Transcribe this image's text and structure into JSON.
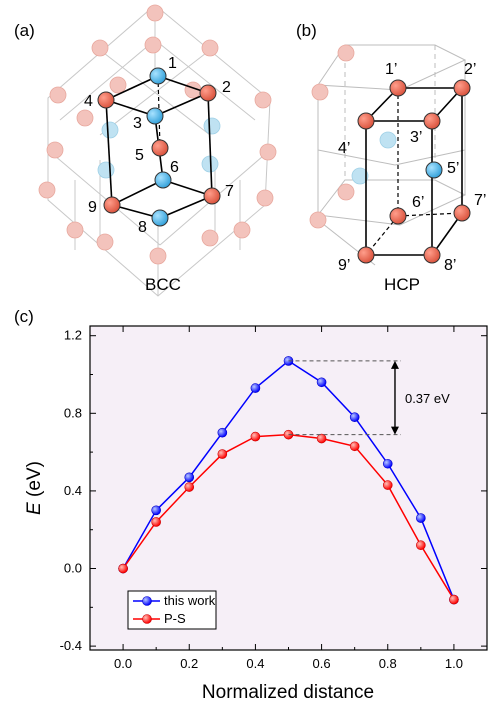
{
  "panels": {
    "a": {
      "tag": "(a)",
      "caption": "BCC",
      "atom_labels": [
        "1",
        "2",
        "3",
        "4",
        "5",
        "6",
        "7",
        "8",
        "9"
      ]
    },
    "b": {
      "tag": "(b)",
      "caption": "HCP",
      "atom_labels": [
        "1’",
        "2’",
        "3’",
        "4’",
        "5’",
        "6’",
        "7’",
        "8’",
        "9’"
      ]
    },
    "c": {
      "tag": "(c)"
    }
  },
  "colors": {
    "atom_red": "#e8644f",
    "atom_blue": "#5ab8e6",
    "atom_faint_red": "#f3c3bc",
    "atom_faint_blue": "#bfe2f2",
    "plot_bg": "#f6eff7",
    "series_blue": "#0000ff",
    "series_red": "#ff0000"
  },
  "chart_data": {
    "type": "line",
    "xlabel": "Normalized distance",
    "ylabel_italic": "E",
    "ylabel_unit": " (eV)",
    "xlim": [
      -0.1,
      1.1
    ],
    "ylim": [
      -0.42,
      1.25
    ],
    "xticks": [
      0.0,
      0.2,
      0.4,
      0.6,
      0.8,
      1.0
    ],
    "xtick_labels": [
      "0.0",
      "0.2",
      "0.4",
      "0.6",
      "0.8",
      "1.0"
    ],
    "yticks": [
      -0.4,
      0.0,
      0.4,
      0.8,
      1.2
    ],
    "ytick_labels": [
      "-0.4",
      "0.0",
      "0.4",
      "0.8",
      "1.2"
    ],
    "legend_position": "bottom-left",
    "series": [
      {
        "name": "this work",
        "color": "#0000ff",
        "x": [
          0.0,
          0.1,
          0.2,
          0.3,
          0.4,
          0.5,
          0.6,
          0.7,
          0.8,
          0.9,
          1.0
        ],
        "y": [
          0.0,
          0.3,
          0.47,
          0.7,
          0.93,
          1.07,
          0.96,
          0.78,
          0.54,
          0.26,
          -0.16
        ]
      },
      {
        "name": "P-S",
        "color": "#ff0000",
        "x": [
          0.0,
          0.1,
          0.2,
          0.3,
          0.4,
          0.5,
          0.6,
          0.7,
          0.8,
          0.9,
          1.0
        ],
        "y": [
          0.0,
          0.24,
          0.42,
          0.59,
          0.68,
          0.69,
          0.67,
          0.63,
          0.43,
          0.12,
          -0.16
        ]
      }
    ],
    "annotation": {
      "text": "0.37 eV",
      "x_from": 0.5,
      "x_to": 0.84,
      "y_top": 1.07,
      "y_bottom": 0.69
    }
  }
}
